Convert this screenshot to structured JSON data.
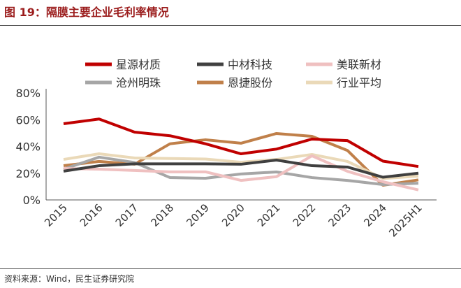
{
  "title": "图 19：隔膜主要企业毛利率情况",
  "source": "资料来源：Wind，民生证券研究院",
  "chart_data": {
    "type": "line",
    "categories": [
      "2015",
      "2016",
      "2017",
      "2018",
      "2019",
      "2020",
      "2021",
      "2022",
      "2023",
      "2024",
      "2025H1"
    ],
    "ylim": [
      0,
      80
    ],
    "yticks": [
      "0%",
      "20%",
      "40%",
      "60%",
      "80%"
    ],
    "grid": false,
    "legend_placement": "top",
    "series": [
      {
        "name": "星源材质",
        "color": "#c00000",
        "values": [
          57,
          60.5,
          50.7,
          48,
          42,
          34.5,
          38,
          45.5,
          44.4,
          29,
          25
        ]
      },
      {
        "name": "中材科技",
        "color": "#404040",
        "values": [
          21.5,
          25.6,
          27,
          27,
          27,
          26.7,
          29.8,
          25.6,
          24.6,
          17,
          20
        ]
      },
      {
        "name": "美联新材",
        "color": "#efc0c0",
        "values": [
          23.5,
          23,
          22,
          21,
          21,
          14.6,
          17.4,
          33,
          21.4,
          13.6,
          7.5
        ]
      },
      {
        "name": "沧州明珠",
        "color": "#a6a6a6",
        "values": [
          23,
          32,
          28,
          16.7,
          16.2,
          19.4,
          20.9,
          16.7,
          14.6,
          11.5,
          12.5
        ]
      },
      {
        "name": "恩捷股份",
        "color": "#c0804a",
        "values": [
          25.6,
          28.8,
          26.7,
          42,
          45,
          42.4,
          49.7,
          47.6,
          37,
          11,
          15
        ]
      },
      {
        "name": "行业平均",
        "color": "#ead9b8",
        "values": [
          30.3,
          34.5,
          31.4,
          31,
          30.6,
          28.2,
          30.3,
          34,
          28.8,
          16,
          17.8
        ]
      }
    ]
  }
}
